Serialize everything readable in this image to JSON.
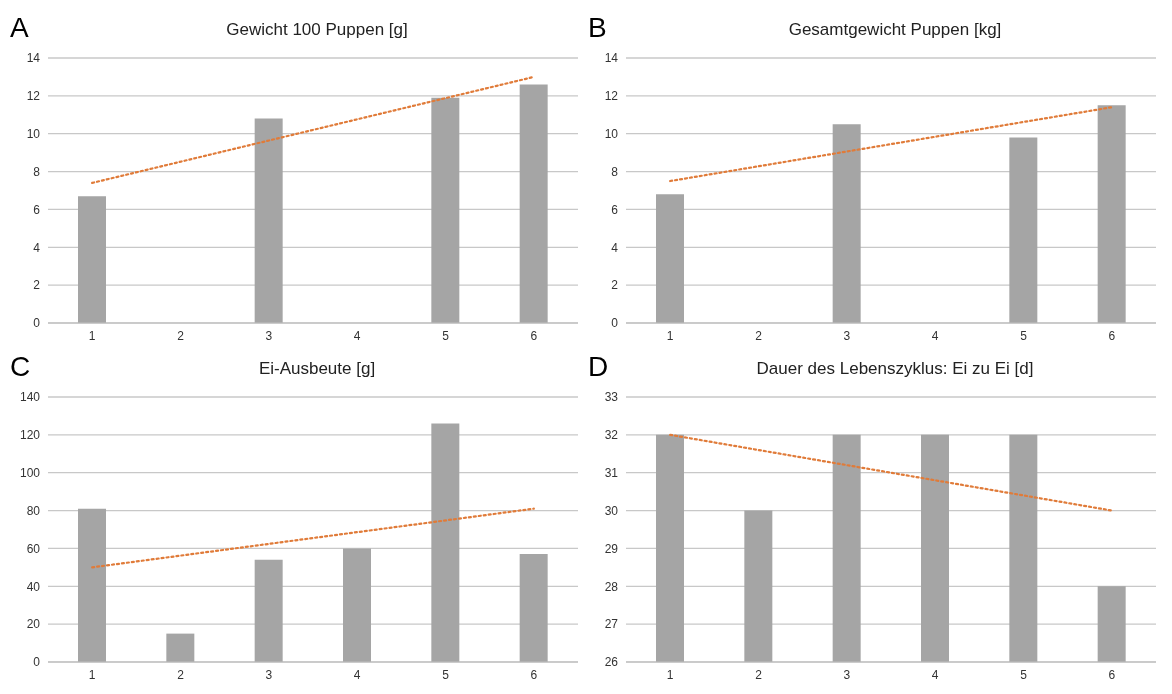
{
  "chart_data": [
    {
      "type": "bar",
      "title": "Gewicht 100 Puppen [g]",
      "annotations": [
        "A"
      ],
      "categories": [
        "1",
        "2",
        "3",
        "4",
        "5",
        "6"
      ],
      "ylim": [
        0,
        14
      ],
      "yticks": [
        0,
        2,
        4,
        6,
        8,
        10,
        12,
        14
      ],
      "grid": "y",
      "series": [
        {
          "color": "#a5a5a5",
          "values": [
            6.7,
            null,
            10.8,
            null,
            11.9,
            12.6
          ]
        },
        {
          "type": "line",
          "color": "#e07b39",
          "line_style": "dotted",
          "marker": "none",
          "x": [
            "1",
            "6"
          ],
          "values": [
            7.4,
            13.0
          ]
        }
      ]
    },
    {
      "type": "bar",
      "title": "Gesamtgewicht Puppen [kg]",
      "annotations": [
        "B"
      ],
      "categories": [
        "1",
        "2",
        "3",
        "4",
        "5",
        "6"
      ],
      "ylim": [
        0,
        14
      ],
      "yticks": [
        0,
        2,
        4,
        6,
        8,
        10,
        12,
        14
      ],
      "grid": "y",
      "series": [
        {
          "color": "#a5a5a5",
          "values": [
            6.8,
            null,
            10.5,
            null,
            9.8,
            11.5
          ]
        },
        {
          "type": "line",
          "color": "#e07b39",
          "line_style": "dotted",
          "marker": "none",
          "x": [
            "1",
            "6"
          ],
          "values": [
            7.5,
            11.4
          ]
        }
      ]
    },
    {
      "type": "bar",
      "title": "Ei-Ausbeute [g]",
      "annotations": [
        "C"
      ],
      "categories": [
        "1",
        "2",
        "3",
        "4",
        "5",
        "6"
      ],
      "ylim": [
        0,
        140
      ],
      "yticks": [
        0,
        20,
        40,
        60,
        80,
        100,
        120,
        140
      ],
      "grid": "y",
      "series": [
        {
          "color": "#a5a5a5",
          "values": [
            81,
            15,
            54,
            60,
            126,
            57
          ]
        },
        {
          "type": "line",
          "color": "#e07b39",
          "line_style": "dotted",
          "marker": "none",
          "x": [
            "1",
            "6"
          ],
          "values": [
            50,
            81
          ]
        }
      ]
    },
    {
      "type": "bar",
      "title": "Dauer des Lebenszyklus: Ei zu Ei [d]",
      "annotations": [
        "D"
      ],
      "categories": [
        "1",
        "2",
        "3",
        "4",
        "5",
        "6"
      ],
      "ylim": [
        26,
        33
      ],
      "yticks": [
        26,
        27,
        28,
        29,
        30,
        31,
        32,
        33
      ],
      "grid": "y",
      "series": [
        {
          "color": "#a5a5a5",
          "values": [
            32,
            30,
            32,
            32,
            32,
            28
          ]
        },
        {
          "type": "line",
          "color": "#e07b39",
          "line_style": "dotted",
          "marker": "none",
          "x": [
            "1",
            "6"
          ],
          "values": [
            32,
            30
          ]
        }
      ]
    }
  ]
}
